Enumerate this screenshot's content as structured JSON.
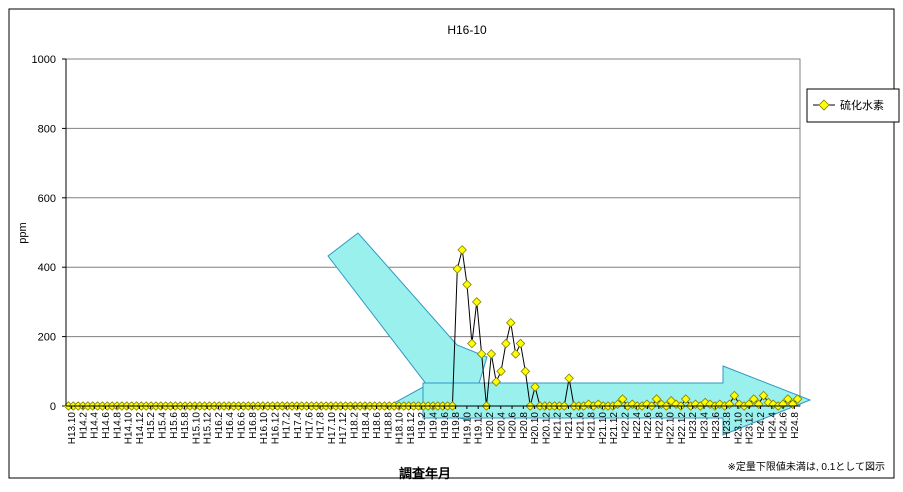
{
  "chart_data": {
    "type": "line",
    "title": "H16-10",
    "xlabel": "調査年月",
    "ylabel": "ppm",
    "ylim": [
      0,
      1000
    ],
    "yticks": [
      0,
      200,
      400,
      600,
      800,
      1000
    ],
    "grid": true,
    "legend_position": "right",
    "note": "※定量下限値未満は, 0.1として図示",
    "colors": {
      "marker_fill": "#ffff00",
      "marker_stroke": "#808000",
      "line": "#000000",
      "arrow_fill": "#99f0ec",
      "arrow_stroke": "#2f97c4",
      "grid": "#808080"
    },
    "x_tick_labels": [
      "H13.10",
      "H14.2",
      "H14.4",
      "H14.6",
      "H14.8",
      "H14.10",
      "H14.12",
      "H15.2",
      "H15.4",
      "H15.6",
      "H15.8",
      "H15.10",
      "H15.12",
      "H16.2",
      "H16.4",
      "H16.6",
      "H16.8",
      "H16.10",
      "H16.12",
      "H17.2",
      "H17.4",
      "H17.6",
      "H17.8",
      "H17.10",
      "H17.12",
      "H18.2",
      "H18.4",
      "H18.6",
      "H18.8",
      "H18.10",
      "H18.12",
      "H19.2",
      "H19.4",
      "H19.6",
      "H19.8",
      "H19.10",
      "H19.12",
      "H20.2",
      "H20.4",
      "H20.6",
      "H20.8",
      "H20.10",
      "H20.12",
      "H21.2",
      "H21.4",
      "H21.6",
      "H21.8",
      "H21.10",
      "H21.12",
      "H22.2",
      "H22.4",
      "H22.6",
      "H22.8",
      "H22.10",
      "H22.12",
      "H23.2",
      "H23.4",
      "H23.6",
      "H23.8",
      "H23.10",
      "H23.12",
      "H24.2",
      "H24.4",
      "H24.6",
      "H24.8"
    ],
    "series": [
      {
        "name": "硫化水素",
        "values": [
          0,
          0,
          0,
          0,
          0,
          0,
          0,
          0,
          0,
          0,
          0,
          0,
          0,
          0,
          0,
          0,
          0,
          0,
          0,
          0,
          0,
          0,
          0,
          0,
          0,
          0,
          0,
          0,
          0,
          0,
          0,
          0,
          0,
          0,
          0,
          0,
          0,
          0,
          0,
          0,
          0,
          0,
          0,
          0,
          0,
          0,
          0,
          0,
          0,
          0,
          0,
          0,
          0,
          0,
          0,
          0,
          0,
          0,
          0,
          0,
          0,
          0,
          0,
          0,
          0,
          0,
          0,
          0,
          0,
          0,
          0,
          0,
          0,
          0,
          0,
          0,
          0,
          0,
          0,
          0,
          395,
          450,
          350,
          180,
          300,
          150,
          0,
          150,
          70,
          100,
          180,
          240,
          150,
          180,
          100,
          0,
          55,
          0,
          0,
          0,
          0,
          0,
          0,
          80,
          0,
          0,
          0,
          5,
          0,
          5,
          0,
          0,
          0,
          5,
          20,
          0,
          5,
          0,
          0,
          5,
          0,
          20,
          5,
          0,
          15,
          5,
          0,
          20,
          0,
          5,
          0,
          10,
          5,
          0,
          5,
          0,
          5,
          30,
          5,
          0,
          5,
          20,
          5,
          30,
          10,
          5,
          0,
          5,
          20,
          5,
          20
        ]
      }
    ]
  }
}
